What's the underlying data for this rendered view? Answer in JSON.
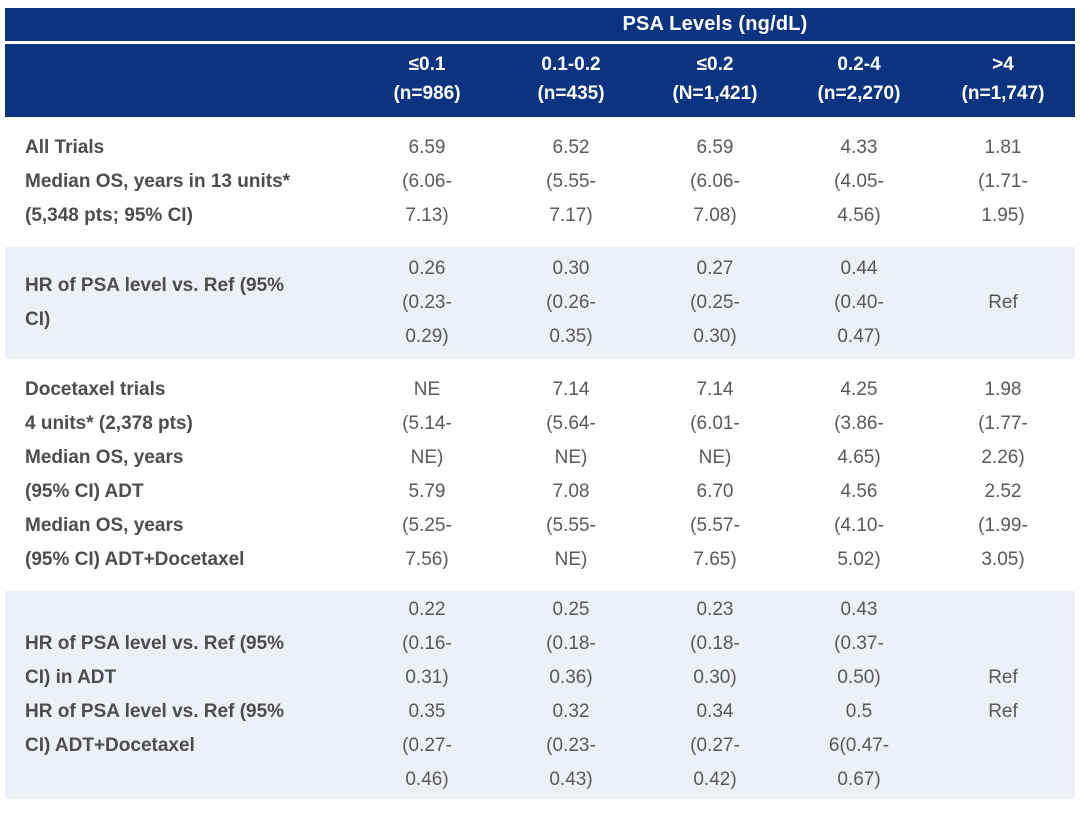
{
  "table": {
    "title": "PSA Levels (ng/dL)",
    "colors": {
      "header_bg": "#0a3380",
      "header_text": "#ffffff",
      "shaded_row_bg": "#edf0f6",
      "label_text": "#4d4d4d",
      "value_text": "#595959"
    },
    "columns": [
      {
        "range": "≤0.1",
        "n": "(n=986)"
      },
      {
        "range": "0.1-0.2",
        "n": "(n=435)"
      },
      {
        "range": "≤0.2",
        "n": "(N=1,421)"
      },
      {
        "range": "0.2-4",
        "n": "(n=2,270)"
      },
      {
        "range": ">4",
        "n": "(n=1,747)"
      }
    ],
    "rows": [
      {
        "name": "all-trials-median-os",
        "shaded": false,
        "label_lines": [
          "All Trials",
          "Median OS, years in 13 units*",
          "(5,348 pts; 95% CI)"
        ],
        "cells": [
          [
            "6.59",
            "(6.06-",
            "7.13)"
          ],
          [
            "6.52",
            "(5.55-",
            "7.17)"
          ],
          [
            "6.59",
            "(6.06-",
            "7.08)"
          ],
          [
            "4.33",
            "(4.05-",
            "4.56)"
          ],
          [
            "1.81",
            "(1.71-",
            "1.95)"
          ]
        ]
      },
      {
        "name": "all-trials-hr",
        "shaded": true,
        "label_lines": [
          "HR of PSA level vs. Ref (95%",
          "CI)"
        ],
        "cells": [
          [
            "0.26",
            "(0.23-",
            "0.29)"
          ],
          [
            "0.30",
            "(0.26-",
            "0.35)"
          ],
          [
            "0.27",
            "(0.25-",
            "0.30)"
          ],
          [
            "0.44",
            "(0.40-",
            "0.47)"
          ],
          [
            "Ref"
          ]
        ]
      },
      {
        "name": "docetaxel-trials-median-os",
        "shaded": false,
        "label_lines": [
          "Docetaxel trials",
          "4 units* (2,378 pts)",
          "Median OS, years",
          "(95% CI) ADT",
          "Median OS, years",
          "(95% CI) ADT+Docetaxel"
        ],
        "cells": [
          [
            "NE",
            "(5.14-",
            "NE)",
            "5.79",
            "(5.25-",
            "7.56)"
          ],
          [
            "7.14",
            "(5.64-",
            "NE)",
            "7.08",
            "(5.55-",
            "NE)"
          ],
          [
            "7.14",
            "(6.01-",
            "NE)",
            "6.70",
            "(5.57-",
            "7.65)"
          ],
          [
            "4.25",
            "(3.86-",
            "4.65)",
            "4.56",
            "(4.10-",
            "5.02)"
          ],
          [
            "1.98",
            "(1.77-",
            "2.26)",
            "2.52",
            "(1.99-",
            "3.05)"
          ]
        ]
      },
      {
        "name": "docetaxel-trials-hr",
        "shaded": true,
        "label_lines": [
          "HR of PSA level vs. Ref (95%",
          "CI) in ADT",
          "HR of PSA level vs. Ref (95%",
          "CI) ADT+Docetaxel"
        ],
        "cells": [
          [
            "0.22",
            "(0.16-",
            "0.31)",
            "0.35",
            "(0.27-",
            "0.46)"
          ],
          [
            "0.25",
            "(0.18-",
            "0.36)",
            "0.32",
            "(0.23-",
            "0.43)"
          ],
          [
            "0.23",
            "(0.18-",
            "0.30)",
            "0.34",
            "(0.27-",
            "0.42)"
          ],
          [
            "0.43",
            "(0.37-",
            "0.50)",
            "0.5",
            "6(0.47-",
            "0.67)"
          ],
          [
            "Ref",
            "Ref"
          ]
        ]
      }
    ]
  }
}
